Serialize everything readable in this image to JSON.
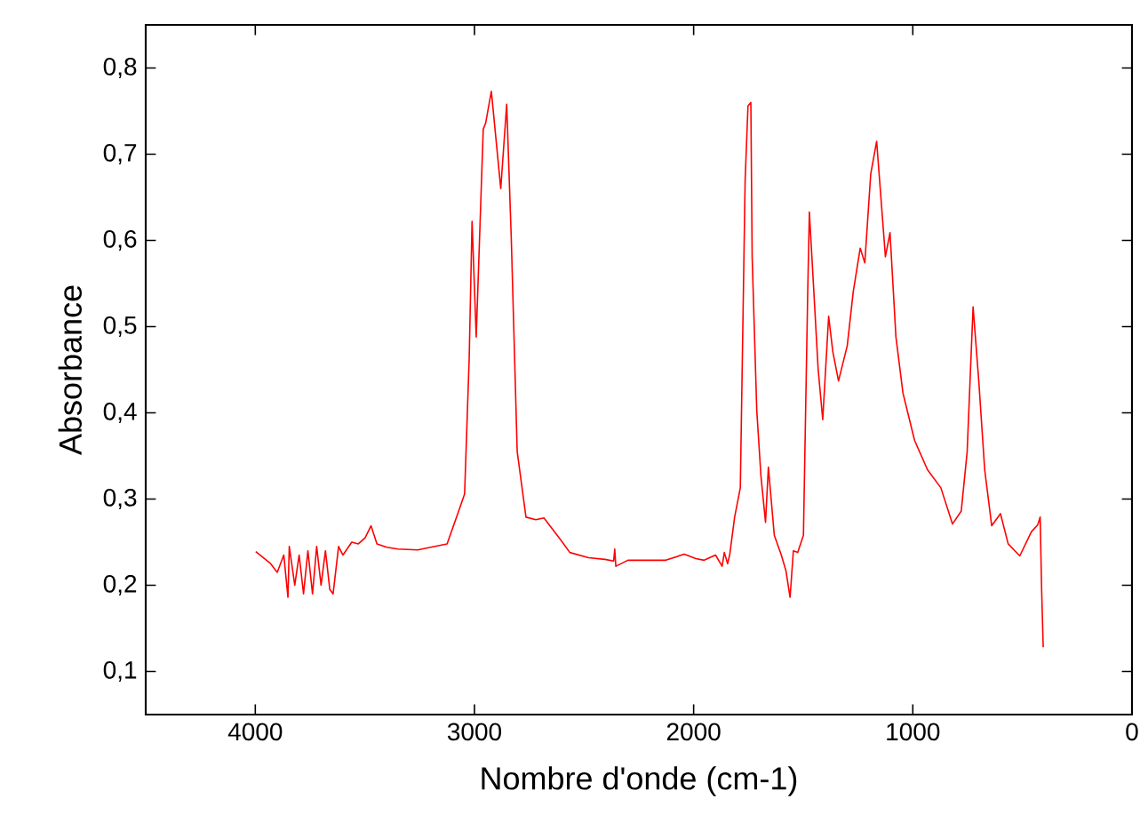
{
  "chart_data": {
    "type": "line",
    "xlabel": "Nombre d'onde (cm-1)",
    "ylabel": "Absorbance",
    "xlim": [
      4500,
      0
    ],
    "ylim": [
      0.05,
      0.85
    ],
    "xticks": [
      4000,
      3000,
      2000,
      1000,
      0
    ],
    "yticks": [
      {
        "value": 0.1,
        "label": "0,1"
      },
      {
        "value": 0.2,
        "label": "0,2"
      },
      {
        "value": 0.3,
        "label": "0,3"
      },
      {
        "value": 0.4,
        "label": "0,4"
      },
      {
        "value": 0.5,
        "label": "0,5"
      },
      {
        "value": 0.6,
        "label": "0,6"
      },
      {
        "value": 0.7,
        "label": "0,7"
      },
      {
        "value": 0.8,
        "label": "0,8"
      }
    ],
    "series": [
      {
        "color": "#ff0000",
        "x": [
          3998,
          3930,
          3900,
          3870,
          3851,
          3845,
          3820,
          3800,
          3780,
          3760,
          3739,
          3720,
          3700,
          3680,
          3660,
          3645,
          3620,
          3600,
          3560,
          3530,
          3499,
          3472,
          3445,
          3400,
          3350,
          3259,
          3200,
          3125,
          3072,
          3045,
          3024,
          3011,
          2992,
          2960,
          2949,
          2923,
          2880,
          2853,
          2832,
          2805,
          2765,
          2720,
          2683,
          2605,
          2565,
          2480,
          2405,
          2365,
          2360,
          2355,
          2300,
          2219,
          2127,
          2043,
          1990,
          1952,
          1900,
          1870,
          1860,
          1845,
          1835,
          1813,
          1787,
          1765,
          1752,
          1739,
          1733,
          1712,
          1693,
          1672,
          1659,
          1632,
          1600,
          1579,
          1560,
          1545,
          1525,
          1499,
          1480,
          1472,
          1453,
          1432,
          1411,
          1384,
          1365,
          1339,
          1299,
          1272,
          1240,
          1219,
          1192,
          1165,
          1125,
          1104,
          1077,
          1045,
          992,
          933,
          872,
          819,
          779,
          752,
          725,
          699,
          672,
          640,
          600,
          565,
          512,
          459,
          430,
          419,
          412,
          405
        ],
        "values": [
          0.239,
          0.225,
          0.215,
          0.235,
          0.186,
          0.245,
          0.2,
          0.235,
          0.19,
          0.24,
          0.19,
          0.245,
          0.2,
          0.24,
          0.195,
          0.19,
          0.245,
          0.235,
          0.25,
          0.248,
          0.255,
          0.269,
          0.248,
          0.244,
          0.242,
          0.241,
          0.244,
          0.248,
          0.286,
          0.306,
          0.464,
          0.622,
          0.488,
          0.729,
          0.736,
          0.773,
          0.66,
          0.758,
          0.602,
          0.355,
          0.279,
          0.276,
          0.278,
          0.252,
          0.238,
          0.232,
          0.23,
          0.228,
          0.242,
          0.222,
          0.229,
          0.229,
          0.229,
          0.236,
          0.231,
          0.229,
          0.235,
          0.222,
          0.238,
          0.225,
          0.236,
          0.279,
          0.313,
          0.67,
          0.756,
          0.76,
          0.581,
          0.403,
          0.327,
          0.273,
          0.337,
          0.258,
          0.235,
          0.217,
          0.186,
          0.24,
          0.238,
          0.258,
          0.533,
          0.633,
          0.547,
          0.451,
          0.392,
          0.512,
          0.471,
          0.437,
          0.478,
          0.54,
          0.591,
          0.574,
          0.677,
          0.715,
          0.581,
          0.609,
          0.488,
          0.423,
          0.368,
          0.334,
          0.313,
          0.271,
          0.286,
          0.355,
          0.523,
          0.437,
          0.334,
          0.269,
          0.283,
          0.248,
          0.234,
          0.262,
          0.27,
          0.279,
          0.193,
          0.128
        ]
      }
    ]
  }
}
